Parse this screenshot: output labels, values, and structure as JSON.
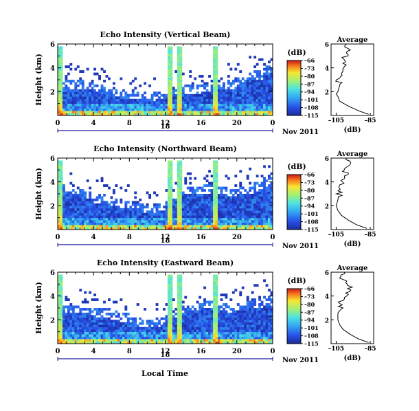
{
  "figure": {
    "x_axis_title": "Local Time",
    "y_axis_title": "Height (km)",
    "date_label": "Nov 2011",
    "day_label": "18",
    "colorbar_title": "(dB)",
    "avg_title": "Average",
    "avg_xlabel": "(dB)"
  },
  "chart_data": [
    {
      "type": "heatmap",
      "title": "Echo Intensity (Vertical Beam)",
      "x": {
        "label": "Local Time",
        "ticks": [
          "0",
          "4",
          "8",
          "12",
          "16",
          "20",
          "0"
        ],
        "range_hours": [
          0,
          24
        ]
      },
      "y": {
        "label": "Height (km)",
        "ticks": [
          "2",
          "4",
          "6"
        ],
        "range_km": [
          0,
          6
        ]
      },
      "colorbar": {
        "title": "(dB)",
        "ticks": [
          -66,
          -73,
          -80,
          -87,
          -94,
          -101,
          -108,
          -115
        ],
        "range": [
          -115,
          -66
        ],
        "colormap": "jet"
      },
      "echo_top_km": [
        3.1,
        3.0,
        2.9,
        2.8,
        2.6,
        2.4,
        2.2,
        2.1,
        2.0,
        1.9,
        1.9,
        2.0,
        2.2,
        2.4,
        2.5,
        2.5,
        2.6,
        2.7,
        2.8,
        3.0,
        3.3,
        3.6,
        3.8,
        4.2
      ],
      "rain_events_hours": [
        0.2,
        12.5,
        13.6,
        17.6
      ],
      "average_profile": {
        "title": "Average",
        "xlabel": "(dB)",
        "x_ticks": [
          -105,
          -85
        ],
        "y_ticks": [
          2,
          4,
          6
        ],
        "height_km": [
          0.1,
          0.4,
          0.8,
          1.2,
          1.6,
          1.8,
          2.0,
          2.5,
          3.0,
          3.5,
          4.0,
          4.5,
          5.0,
          5.5,
          6.0
        ],
        "db": [
          -86,
          -92,
          -98,
          -103,
          -104,
          -105,
          -104,
          -103,
          -104,
          -102,
          -101,
          -99,
          -100,
          -98,
          -99
        ]
      }
    },
    {
      "type": "heatmap",
      "title": "Echo Intensity (Northward Beam)",
      "x": {
        "label": "Local Time",
        "ticks": [
          "0",
          "4",
          "8",
          "12",
          "16",
          "20",
          "0"
        ],
        "range_hours": [
          0,
          24
        ]
      },
      "y": {
        "label": "Height (km)",
        "ticks": [
          "2",
          "4",
          "6"
        ],
        "range_km": [
          0,
          6
        ]
      },
      "colorbar": {
        "title": "(dB)",
        "ticks": [
          -66,
          -73,
          -80,
          -87,
          -94,
          -101,
          -108,
          -115
        ],
        "range": [
          -115,
          -66
        ],
        "colormap": "jet"
      },
      "echo_top_km": [
        3.8,
        3.6,
        3.4,
        3.2,
        3.0,
        2.9,
        2.6,
        2.4,
        2.2,
        2.1,
        2.0,
        2.2,
        2.6,
        3.2,
        3.6,
        3.6,
        3.8,
        3.9,
        3.6,
        3.4,
        3.6,
        3.8,
        4.0,
        4.3
      ],
      "rain_events_hours": [
        0.2,
        12.5,
        13.6,
        17.6
      ],
      "average_profile": {
        "title": "Average",
        "xlabel": "(dB)",
        "x_ticks": [
          -105,
          -85
        ],
        "y_ticks": [
          2,
          4,
          6
        ],
        "height_km": [
          0.1,
          0.4,
          0.8,
          1.2,
          1.6,
          2.0,
          2.5,
          3.0,
          3.5,
          4.0,
          4.5,
          5.0,
          5.5,
          6.0
        ],
        "db": [
          -87,
          -93,
          -98,
          -102,
          -104,
          -105,
          -104,
          -103,
          -103,
          -101,
          -99,
          -100,
          -98,
          -99
        ]
      }
    },
    {
      "type": "heatmap",
      "title": "Echo Intensity (Eastward Beam)",
      "x": {
        "label": "Local Time",
        "ticks": [
          "0",
          "4",
          "8",
          "12",
          "16",
          "20",
          "0"
        ],
        "range_hours": [
          0,
          24
        ]
      },
      "y": {
        "label": "Height (km)",
        "ticks": [
          "2",
          "4",
          "6"
        ],
        "range_km": [
          0,
          6
        ]
      },
      "colorbar": {
        "title": "(dB)",
        "ticks": [
          -66,
          -73,
          -80,
          -87,
          -94,
          -101,
          -108,
          -115
        ],
        "range": [
          -115,
          -66
        ],
        "colormap": "jet"
      },
      "echo_top_km": [
        3.3,
        3.3,
        3.2,
        3.1,
        3.0,
        2.9,
        2.7,
        2.5,
        2.3,
        2.1,
        2.0,
        2.1,
        2.4,
        2.8,
        3.2,
        3.4,
        3.6,
        3.7,
        3.4,
        3.2,
        3.4,
        3.6,
        3.8,
        4.0
      ],
      "rain_events_hours": [
        0.2,
        12.5,
        13.6,
        17.6
      ],
      "average_profile": {
        "title": "Average",
        "xlabel": "(dB)",
        "x_ticks": [
          -105,
          -85
        ],
        "y_ticks": [
          2,
          4,
          6
        ],
        "height_km": [
          0.1,
          0.4,
          0.8,
          1.2,
          1.6,
          2.0,
          2.5,
          3.0,
          3.5,
          4.0,
          4.5,
          5.0,
          5.5,
          6.0
        ],
        "db": [
          -86,
          -92,
          -97,
          -101,
          -103,
          -104,
          -104,
          -103,
          -102,
          -99,
          -96,
          -99,
          -101,
          -100
        ]
      }
    }
  ]
}
